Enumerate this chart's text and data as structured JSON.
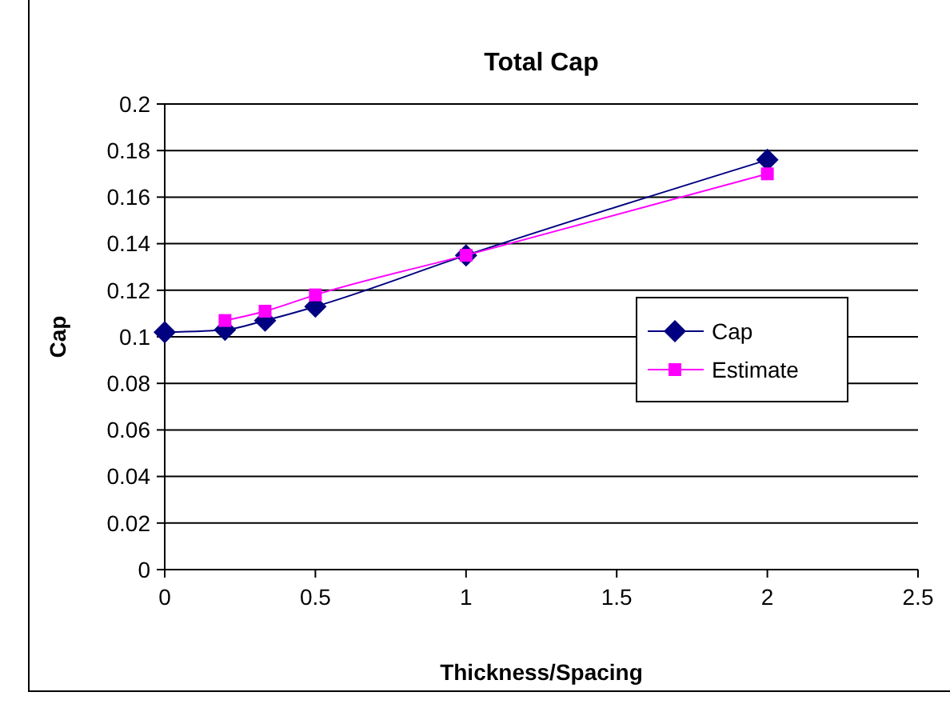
{
  "chart_data": {
    "type": "line",
    "title": "Total Cap",
    "xlabel": "Thickness/Spacing",
    "ylabel": "Cap",
    "xlim": [
      0,
      2.5
    ],
    "xticks": [
      0,
      0.5,
      1,
      1.5,
      2,
      2.5
    ],
    "ylim": [
      0,
      0.2
    ],
    "yticks": [
      0,
      0.02,
      0.04,
      0.06,
      0.08,
      0.1,
      0.12,
      0.14,
      0.16,
      0.18,
      0.2
    ],
    "grid": "y",
    "legend": "right",
    "series": [
      {
        "name": "Cap",
        "color": "#000080",
        "marker": "diamond",
        "x": [
          0,
          0.2,
          0.333,
          0.5,
          1,
          2
        ],
        "values": [
          0.102,
          0.103,
          0.107,
          0.113,
          0.135,
          0.176
        ]
      },
      {
        "name": "Estimate",
        "color": "#ff00ff",
        "marker": "square",
        "x": [
          0.2,
          0.333,
          0.5,
          1,
          2
        ],
        "values": [
          0.107,
          0.111,
          0.118,
          0.135,
          0.17
        ]
      }
    ]
  }
}
